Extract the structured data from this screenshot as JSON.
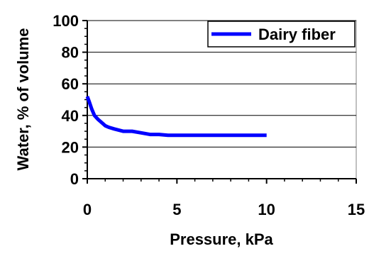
{
  "chart_data": {
    "type": "line",
    "title": "",
    "xlabel": "Pressure, kPa",
    "ylabel": "Water, % of volume",
    "xlim": [
      0,
      15
    ],
    "ylim": [
      0,
      100
    ],
    "x_ticks": [
      0,
      5,
      10,
      15
    ],
    "y_ticks": [
      0,
      20,
      40,
      60,
      80,
      100
    ],
    "x_tick_labels": [
      "0",
      "5",
      "10",
      "15"
    ],
    "y_tick_labels": [
      "0",
      "20",
      "40",
      "60",
      "80",
      "100"
    ],
    "grid": "horizontal",
    "legend_position": "top-right",
    "series": [
      {
        "name": "Dairy fiber",
        "color": "#0000ff",
        "x": [
          0,
          0.1,
          0.25,
          0.4,
          0.6,
          0.8,
          1.0,
          1.2,
          1.5,
          2.0,
          2.5,
          3.0,
          3.5,
          4.0,
          4.5,
          5.0,
          6.0,
          7.0,
          8.0,
          9.0,
          10.0
        ],
        "y": [
          52,
          49,
          44,
          40,
          37.5,
          35.5,
          33.5,
          32.5,
          31.5,
          30,
          30,
          29,
          28,
          28,
          27.5,
          27.5,
          27.5,
          27.5,
          27.5,
          27.5,
          27.5
        ]
      }
    ]
  }
}
